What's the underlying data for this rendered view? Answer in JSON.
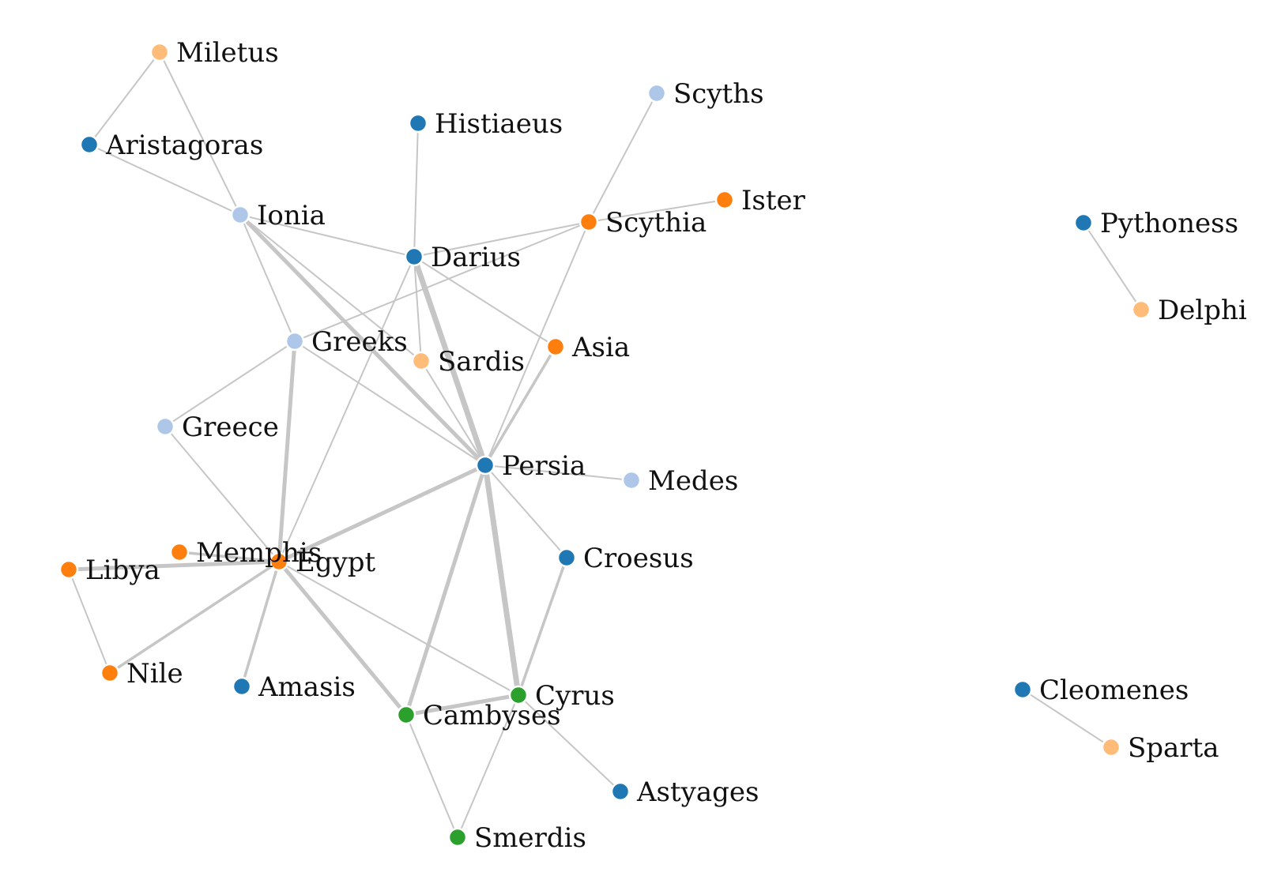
{
  "colors": {
    "blue": "#1f77b4",
    "lightblue": "#aec7e8",
    "orange": "#ff7f0e",
    "peach": "#ffbb78",
    "green": "#2ca02c",
    "edge": "#c6c6c6"
  },
  "nodes": [
    {
      "id": "Miletus",
      "label": "Miletus",
      "color": "peach"
    },
    {
      "id": "Aristagoras",
      "label": "Aristagoras",
      "color": "blue"
    },
    {
      "id": "Ionia",
      "label": "Ionia",
      "color": "lightblue"
    },
    {
      "id": "Histiaeus",
      "label": "Histiaeus",
      "color": "blue"
    },
    {
      "id": "Darius",
      "label": "Darius",
      "color": "blue"
    },
    {
      "id": "Scyths",
      "label": "Scyths",
      "color": "lightblue"
    },
    {
      "id": "Scythia",
      "label": "Scythia",
      "color": "orange"
    },
    {
      "id": "Ister",
      "label": "Ister",
      "color": "orange"
    },
    {
      "id": "Greeks",
      "label": "Greeks",
      "color": "lightblue"
    },
    {
      "id": "Sardis",
      "label": "Sardis",
      "color": "peach"
    },
    {
      "id": "Asia",
      "label": "Asia",
      "color": "orange"
    },
    {
      "id": "Greece",
      "label": "Greece",
      "color": "lightblue"
    },
    {
      "id": "Persia",
      "label": "Persia",
      "color": "blue"
    },
    {
      "id": "Medes",
      "label": "Medes",
      "color": "lightblue"
    },
    {
      "id": "Memphis",
      "label": "Memphis",
      "color": "orange"
    },
    {
      "id": "Libya",
      "label": "Libya",
      "color": "orange"
    },
    {
      "id": "Egypt",
      "label": "Egypt",
      "color": "orange"
    },
    {
      "id": "Croesus",
      "label": "Croesus",
      "color": "blue"
    },
    {
      "id": "Nile",
      "label": "Nile",
      "color": "orange"
    },
    {
      "id": "Amasis",
      "label": "Amasis",
      "color": "blue"
    },
    {
      "id": "Cyrus",
      "label": "Cyrus",
      "color": "green"
    },
    {
      "id": "Cambyses",
      "label": "Cambyses",
      "color": "green"
    },
    {
      "id": "Astyages",
      "label": "Astyages",
      "color": "blue"
    },
    {
      "id": "Smerdis",
      "label": "Smerdis",
      "color": "green"
    },
    {
      "id": "Pythoness",
      "label": "Pythoness",
      "color": "blue"
    },
    {
      "id": "Delphi",
      "label": "Delphi",
      "color": "peach"
    },
    {
      "id": "Cleomenes",
      "label": "Cleomenes",
      "color": "blue"
    },
    {
      "id": "Sparta",
      "label": "Sparta",
      "color": "peach"
    }
  ],
  "edges": [
    {
      "source": "Miletus",
      "target": "Aristagoras",
      "weight": 1
    },
    {
      "source": "Miletus",
      "target": "Ionia",
      "weight": 1
    },
    {
      "source": "Aristagoras",
      "target": "Ionia",
      "weight": 1
    },
    {
      "source": "Ionia",
      "target": "Darius",
      "weight": 1
    },
    {
      "source": "Ionia",
      "target": "Greeks",
      "weight": 1
    },
    {
      "source": "Ionia",
      "target": "Persia",
      "weight": 3
    },
    {
      "source": "Ionia",
      "target": "Sardis",
      "weight": 1
    },
    {
      "source": "Histiaeus",
      "target": "Darius",
      "weight": 1
    },
    {
      "source": "Darius",
      "target": "Scythia",
      "weight": 1
    },
    {
      "source": "Darius",
      "target": "Persia",
      "weight": 4
    },
    {
      "source": "Darius",
      "target": "Sardis",
      "weight": 1
    },
    {
      "source": "Darius",
      "target": "Asia",
      "weight": 1
    },
    {
      "source": "Darius",
      "target": "Egypt",
      "weight": 1
    },
    {
      "source": "Scyths",
      "target": "Scythia",
      "weight": 1
    },
    {
      "source": "Scythia",
      "target": "Ister",
      "weight": 1
    },
    {
      "source": "Scythia",
      "target": "Greeks",
      "weight": 1
    },
    {
      "source": "Scythia",
      "target": "Persia",
      "weight": 1
    },
    {
      "source": "Greeks",
      "target": "Greece",
      "weight": 1
    },
    {
      "source": "Greeks",
      "target": "Persia",
      "weight": 1
    },
    {
      "source": "Greeks",
      "target": "Egypt",
      "weight": 3
    },
    {
      "source": "Sardis",
      "target": "Persia",
      "weight": 1
    },
    {
      "source": "Asia",
      "target": "Persia",
      "weight": 2
    },
    {
      "source": "Greece",
      "target": "Egypt",
      "weight": 1
    },
    {
      "source": "Persia",
      "target": "Medes",
      "weight": 1
    },
    {
      "source": "Persia",
      "target": "Egypt",
      "weight": 3
    },
    {
      "source": "Persia",
      "target": "Croesus",
      "weight": 1
    },
    {
      "source": "Persia",
      "target": "Cambyses",
      "weight": 3
    },
    {
      "source": "Persia",
      "target": "Cyrus",
      "weight": 4
    },
    {
      "source": "Memphis",
      "target": "Egypt",
      "weight": 2
    },
    {
      "source": "Libya",
      "target": "Egypt",
      "weight": 3
    },
    {
      "source": "Libya",
      "target": "Nile",
      "weight": 1
    },
    {
      "source": "Egypt",
      "target": "Nile",
      "weight": 2
    },
    {
      "source": "Egypt",
      "target": "Amasis",
      "weight": 2
    },
    {
      "source": "Egypt",
      "target": "Cambyses",
      "weight": 3
    },
    {
      "source": "Egypt",
      "target": "Cyrus",
      "weight": 1
    },
    {
      "source": "Croesus",
      "target": "Cyrus",
      "weight": 2
    },
    {
      "source": "Cyrus",
      "target": "Cambyses",
      "weight": 3
    },
    {
      "source": "Cyrus",
      "target": "Astyages",
      "weight": 1
    },
    {
      "source": "Cyrus",
      "target": "Smerdis",
      "weight": 1
    },
    {
      "source": "Cambyses",
      "target": "Smerdis",
      "weight": 1
    },
    {
      "source": "Pythoness",
      "target": "Delphi",
      "weight": 1
    },
    {
      "source": "Cleomenes",
      "target": "Sparta",
      "weight": 1
    }
  ]
}
